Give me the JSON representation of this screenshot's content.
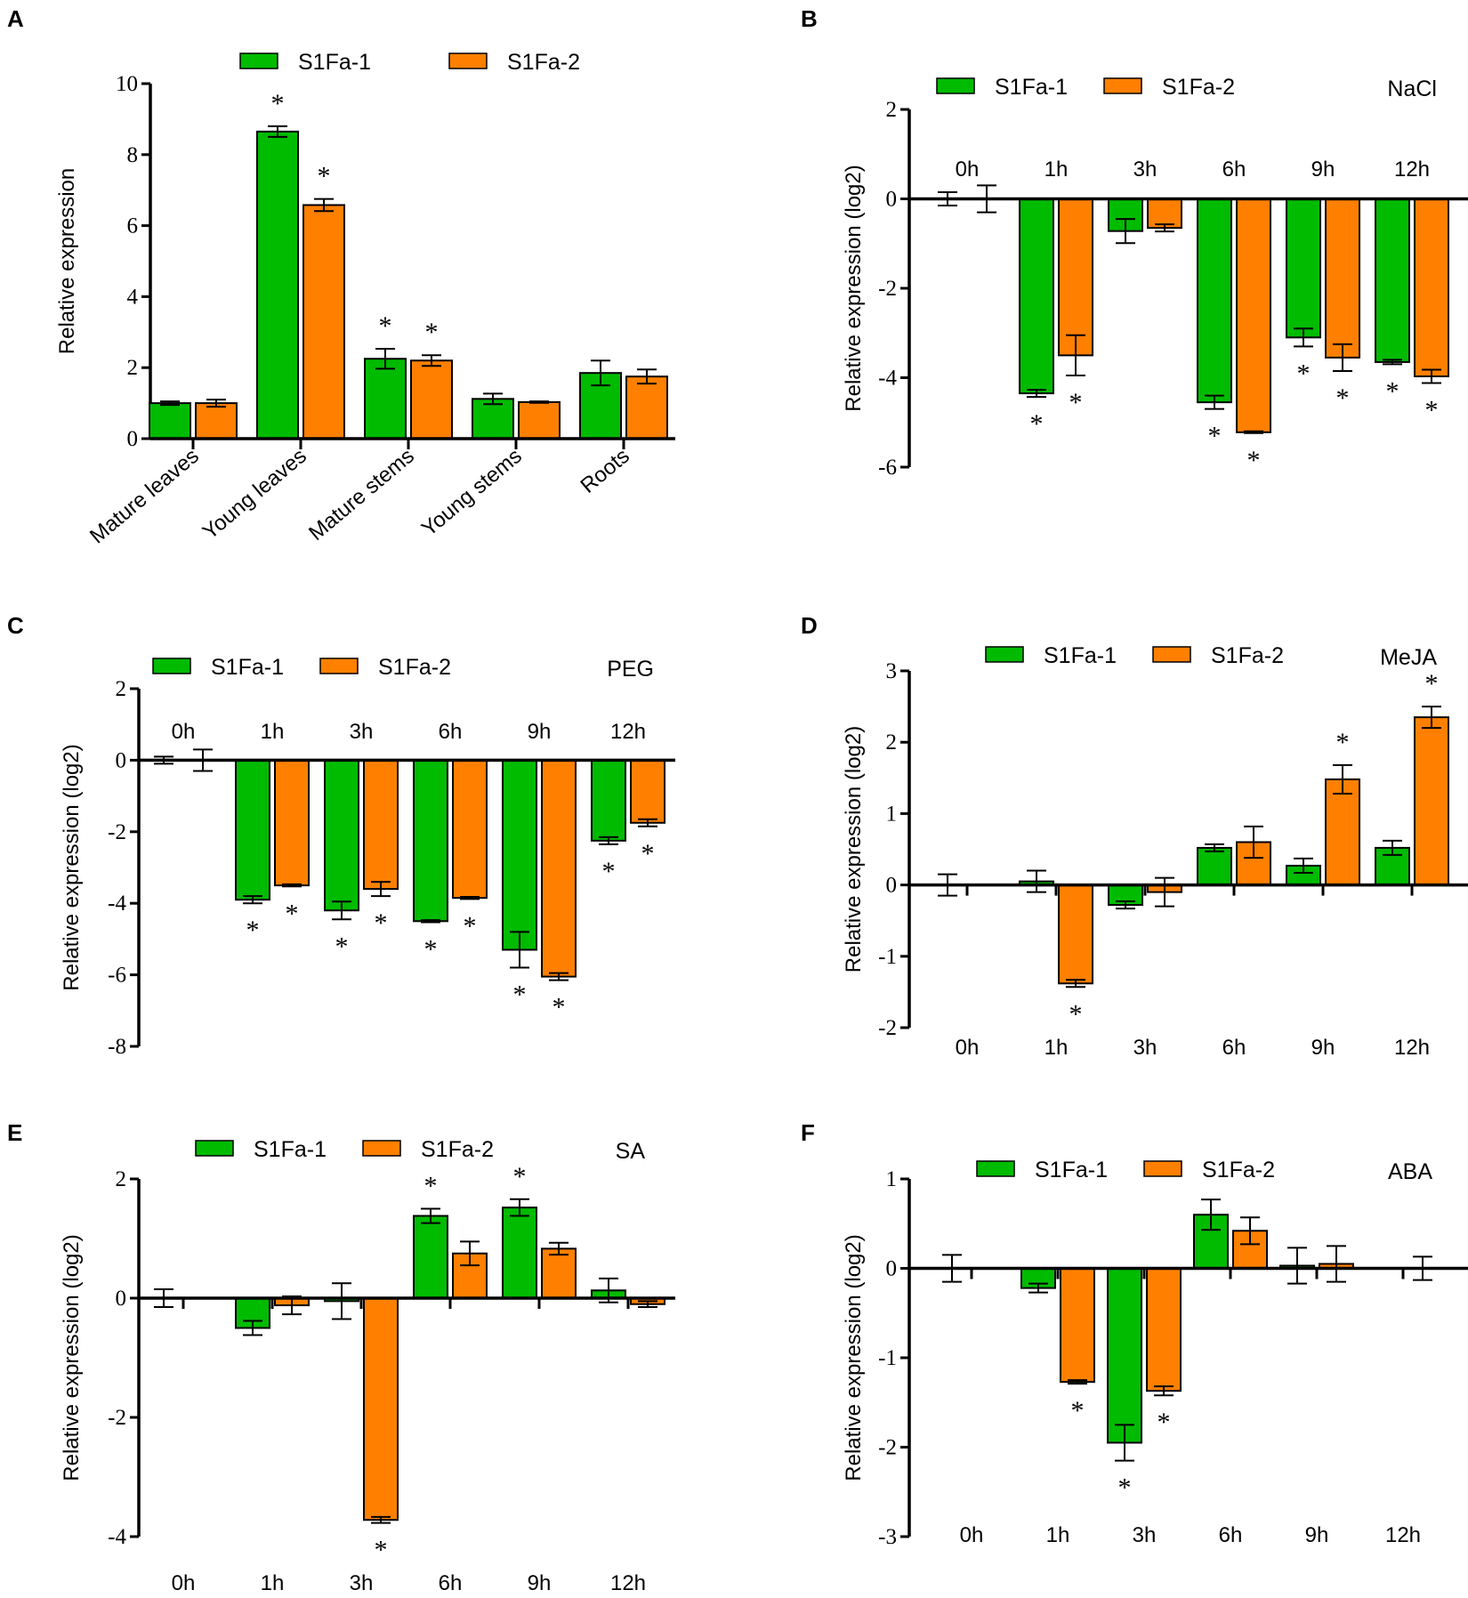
{
  "colors": {
    "S1Fa-1": "#00bb00",
    "S1Fa-2": "#ff8000"
  },
  "chart_data": [
    {
      "panel": "A",
      "type": "bar",
      "condition": "",
      "ylabel": "Relative expression",
      "ylim": [
        0,
        10
      ],
      "yticks": [
        "0",
        "2",
        "4",
        "6",
        "8",
        "10"
      ],
      "categories": [
        "Mature leaves",
        "Young leaves",
        "Mature stems",
        "Young stems",
        "Roots"
      ],
      "series": [
        {
          "name": "S1Fa-1",
          "values": [
            1.0,
            8.65,
            2.25,
            1.12,
            1.85
          ],
          "errors": [
            0.05,
            0.15,
            0.28,
            0.15,
            0.35
          ],
          "significant": [
            false,
            true,
            true,
            false,
            false
          ]
        },
        {
          "name": "S1Fa-2",
          "values": [
            1.0,
            6.58,
            2.2,
            1.03,
            1.75
          ],
          "errors": [
            0.1,
            0.17,
            0.15,
            0.02,
            0.2
          ],
          "significant": [
            false,
            true,
            true,
            false,
            false
          ]
        }
      ]
    },
    {
      "panel": "B",
      "type": "bar",
      "condition": "NaCl",
      "ylabel": "Relative expression (log2)",
      "ylim": [
        -6,
        2
      ],
      "yticks": [
        "-6",
        "-4",
        "-2",
        "0",
        "2"
      ],
      "categories": [
        "0h",
        "1h",
        "3h",
        "6h",
        "9h",
        "12h"
      ],
      "series": [
        {
          "name": "S1Fa-1",
          "values": [
            0,
            -4.35,
            -0.72,
            -4.55,
            -3.1,
            -3.65
          ],
          "errors": [
            0.15,
            0.08,
            0.27,
            0.15,
            0.2,
            0.05
          ],
          "significant": [
            false,
            true,
            false,
            true,
            true,
            true
          ]
        },
        {
          "name": "S1Fa-2",
          "values": [
            0,
            -3.5,
            -0.65,
            -5.22,
            -3.55,
            -3.97
          ],
          "errors": [
            0.3,
            0.45,
            0.08,
            0.02,
            0.3,
            0.15
          ],
          "significant": [
            false,
            true,
            false,
            true,
            true,
            true
          ]
        }
      ]
    },
    {
      "panel": "C",
      "type": "bar",
      "condition": "PEG",
      "ylabel": "Relative expression (log2)",
      "ylim": [
        -8,
        2
      ],
      "yticks": [
        "-8",
        "-6",
        "-4",
        "-2",
        "0",
        "2"
      ],
      "categories": [
        "0h",
        "1h",
        "3h",
        "6h",
        "9h",
        "12h"
      ],
      "series": [
        {
          "name": "S1Fa-1",
          "values": [
            0,
            -3.9,
            -4.2,
            -4.5,
            -5.3,
            -2.25
          ],
          "errors": [
            0.1,
            0.1,
            0.25,
            0.03,
            0.5,
            0.1
          ],
          "significant": [
            false,
            true,
            true,
            true,
            true,
            true
          ]
        },
        {
          "name": "S1Fa-2",
          "values": [
            0,
            -3.5,
            -3.6,
            -3.85,
            -6.05,
            -1.75
          ],
          "errors": [
            0.3,
            0.03,
            0.2,
            0.03,
            0.1,
            0.1
          ],
          "significant": [
            false,
            true,
            true,
            true,
            true,
            true
          ]
        }
      ]
    },
    {
      "panel": "D",
      "type": "bar",
      "condition": "MeJA",
      "ylabel": "Relative expression (log2)",
      "ylim": [
        -2,
        3
      ],
      "yticks": [
        "-2",
        "-1",
        "0",
        "1",
        "2",
        "3"
      ],
      "categories": [
        "0h",
        "1h",
        "3h",
        "6h",
        "9h",
        "12h"
      ],
      "series": [
        {
          "name": "S1Fa-1",
          "values": [
            0,
            0.05,
            -0.28,
            0.52,
            0.27,
            0.52
          ],
          "errors": [
            0.15,
            0.15,
            0.05,
            0.05,
            0.1,
            0.1
          ],
          "significant": [
            false,
            false,
            false,
            false,
            false,
            false
          ]
        },
        {
          "name": "S1Fa-2",
          "values": [
            0,
            -1.38,
            -0.1,
            0.6,
            1.48,
            2.35
          ],
          "errors": [
            0,
            0.05,
            0.2,
            0.22,
            0.2,
            0.15
          ],
          "significant": [
            false,
            true,
            false,
            false,
            true,
            true
          ]
        }
      ]
    },
    {
      "panel": "E",
      "type": "bar",
      "condition": "SA",
      "ylabel": "Relative expression (log2)",
      "ylim": [
        -4,
        2
      ],
      "yticks": [
        "-4",
        "-2",
        "0",
        "2"
      ],
      "categories": [
        "0h",
        "1h",
        "3h",
        "6h",
        "9h",
        "12h"
      ],
      "series": [
        {
          "name": "S1Fa-1",
          "values": [
            0,
            -0.5,
            -0.05,
            1.38,
            1.52,
            0.13
          ],
          "errors": [
            0.15,
            0.12,
            0.3,
            0.12,
            0.14,
            0.2
          ],
          "significant": [
            false,
            false,
            false,
            true,
            true,
            false
          ]
        },
        {
          "name": "S1Fa-2",
          "values": [
            0,
            -0.12,
            -3.72,
            0.75,
            0.83,
            -0.1
          ],
          "errors": [
            0,
            0.15,
            0.05,
            0.2,
            0.1,
            0.05
          ],
          "significant": [
            false,
            false,
            true,
            false,
            false,
            false
          ]
        }
      ]
    },
    {
      "panel": "F",
      "type": "bar",
      "condition": "ABA",
      "ylabel": "Relative expression (log2)",
      "ylim": [
        -3,
        1
      ],
      "yticks": [
        "-3",
        "-2",
        "-1",
        "0",
        "1"
      ],
      "categories": [
        "0h",
        "1h",
        "3h",
        "6h",
        "9h",
        "12h"
      ],
      "series": [
        {
          "name": "S1Fa-1",
          "values": [
            0,
            -0.22,
            -1.95,
            0.6,
            0.03,
            0
          ],
          "errors": [
            0.15,
            0.05,
            0.2,
            0.17,
            0.2,
            0
          ],
          "significant": [
            false,
            false,
            true,
            false,
            false,
            false
          ]
        },
        {
          "name": "S1Fa-2",
          "values": [
            0,
            -1.27,
            -1.37,
            0.42,
            0.05,
            0
          ],
          "errors": [
            0,
            0.02,
            0.05,
            0.15,
            0.2,
            0.13
          ],
          "significant": [
            false,
            true,
            true,
            false,
            false,
            false
          ]
        }
      ]
    }
  ]
}
